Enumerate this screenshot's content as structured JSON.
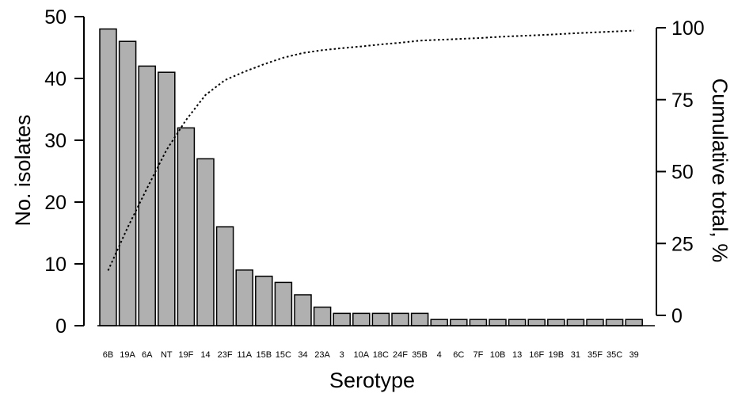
{
  "chart_data": {
    "type": "bar",
    "xlabel": "Serotype",
    "ylabel": "No. isolates",
    "y2label": "Cumulative total, %",
    "ylim": [
      0,
      50
    ],
    "y2lim": [
      0,
      100
    ],
    "yticks": [
      0,
      10,
      20,
      30,
      40,
      50
    ],
    "y2ticks": [
      0,
      25,
      50,
      75,
      100
    ],
    "categories": [
      "6B",
      "19A",
      "6A",
      "NT",
      "19F",
      "14",
      "23F",
      "11A",
      "15B",
      "15C",
      "34",
      "23A",
      "3",
      "10A",
      "18C",
      "24F",
      "35B",
      "4",
      "6C",
      "7F",
      "10B",
      "13",
      "16F",
      "19B",
      "31",
      "35F",
      "35C",
      "39"
    ],
    "series": [
      {
        "kind": "bar",
        "axis": "left",
        "values": [
          48,
          46,
          42,
          41,
          32,
          27,
          16,
          9,
          8,
          7,
          5,
          3,
          2,
          2,
          2,
          2,
          2,
          1,
          1,
          1,
          1,
          1,
          1,
          1,
          1,
          1,
          1,
          1
        ]
      },
      {
        "kind": "line",
        "axis": "right",
        "style": "dotted",
        "values": [
          15.6,
          30.5,
          44.2,
          57.5,
          67.9,
          76.6,
          81.8,
          84.7,
          87.3,
          89.6,
          91.2,
          92.2,
          92.9,
          93.5,
          94.2,
          94.8,
          95.5,
          95.8,
          96.1,
          96.4,
          96.8,
          97.1,
          97.4,
          97.7,
          98.1,
          98.4,
          98.7,
          99.0
        ]
      }
    ],
    "grid": false,
    "legend": "none",
    "colors": {
      "bar_fill": "#b0b0b0",
      "bar_stroke": "#000000",
      "line": "#000000"
    }
  }
}
